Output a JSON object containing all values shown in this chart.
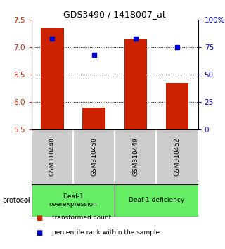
{
  "title": "GDS3490 / 1418007_at",
  "samples": [
    "GSM310448",
    "GSM310450",
    "GSM310449",
    "GSM310452"
  ],
  "red_values": [
    7.35,
    5.9,
    7.15,
    6.35
  ],
  "blue_values": [
    83,
    68,
    83,
    75
  ],
  "ylim_left": [
    5.5,
    7.5
  ],
  "ylim_right": [
    0,
    100
  ],
  "yticks_left": [
    5.5,
    6.0,
    6.5,
    7.0,
    7.5
  ],
  "yticks_right": [
    0,
    25,
    50,
    75,
    100
  ],
  "ytick_labels_right": [
    "0",
    "25",
    "50",
    "75",
    "100%"
  ],
  "bar_color": "#cc2200",
  "dot_color": "#0000cc",
  "group1_label": "Deaf-1\noverexpression",
  "group2_label": "Deaf-1 deficiency",
  "group_bg_color": "#66ee66",
  "sample_bg_color": "#cccccc",
  "legend_red_label": "transformed count",
  "legend_blue_label": "percentile rank within the sample",
  "protocol_label": "protocol",
  "bar_width": 0.55,
  "baseline": 5.5
}
